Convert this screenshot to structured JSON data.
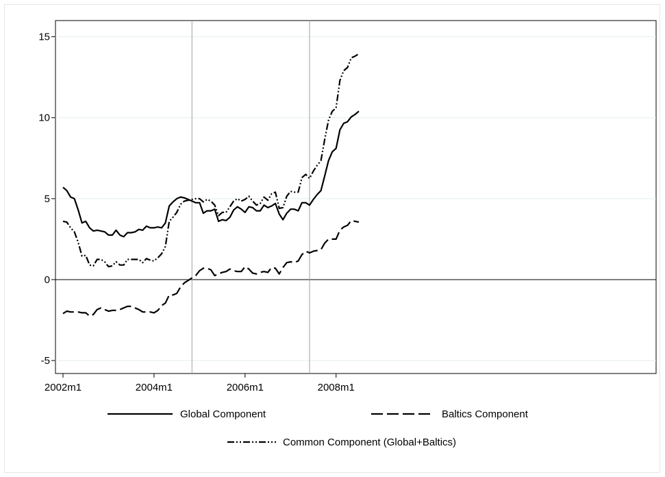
{
  "chart_data": {
    "type": "line",
    "title": "",
    "xlabel": "",
    "ylabel": "",
    "x_start": "2002m1",
    "x_end": "2008m7",
    "xlim": [
      "2002m1",
      "2008m7"
    ],
    "x_ticks": [
      "2002m1",
      "2004m1",
      "2006m1",
      "2008m1"
    ],
    "ylim": [
      -5.8,
      16.0
    ],
    "y_ticks": [
      -5,
      0,
      5,
      10,
      15
    ],
    "y_tick_labels": [
      "-5",
      "0",
      "5",
      "10",
      "15"
    ],
    "grid": "horizontal",
    "zero_line": true,
    "vertical_lines": [
      "2004m11",
      "2007m6"
    ],
    "legend_position": "bottom",
    "series": [
      {
        "name": "Global Component",
        "style": "solid",
        "color": "#000000",
        "values": [
          5.7,
          5.5,
          5.1,
          5.0,
          4.3,
          3.5,
          3.6,
          3.2,
          3.0,
          3.05,
          3.0,
          2.95,
          2.75,
          2.75,
          3.05,
          2.75,
          2.65,
          2.9,
          2.9,
          2.95,
          3.1,
          3.05,
          3.3,
          3.2,
          3.2,
          3.25,
          3.2,
          3.5,
          4.55,
          4.8,
          5.0,
          5.1,
          5.05,
          4.95,
          4.85,
          4.75,
          4.75,
          4.1,
          4.25,
          4.25,
          4.35,
          3.6,
          3.7,
          3.65,
          3.85,
          4.3,
          4.5,
          4.35,
          4.15,
          4.5,
          4.45,
          4.25,
          4.25,
          4.6,
          4.45,
          4.55,
          4.7,
          4.05,
          3.7,
          4.1,
          4.35,
          4.35,
          4.25,
          4.75,
          4.75,
          4.6,
          4.95,
          5.25,
          5.5,
          6.4,
          7.35,
          7.9,
          8.1,
          9.25,
          9.65,
          9.75,
          10.05,
          10.2,
          10.4
        ]
      },
      {
        "name": "Baltics Component",
        "style": "dashed",
        "color": "#000000",
        "values": [
          -2.1,
          -1.95,
          -2.0,
          -2.0,
          -2.0,
          -2.05,
          -2.05,
          -2.25,
          -2.15,
          -1.85,
          -1.75,
          -1.85,
          -1.95,
          -1.9,
          -1.9,
          -1.85,
          -1.75,
          -1.65,
          -1.65,
          -1.75,
          -1.85,
          -2.0,
          -2.0,
          -2.0,
          -2.05,
          -1.9,
          -1.6,
          -1.45,
          -0.95,
          -0.95,
          -0.85,
          -0.45,
          -0.2,
          -0.05,
          0.1,
          0.25,
          0.55,
          0.7,
          0.7,
          0.6,
          0.25,
          0.35,
          0.45,
          0.5,
          0.65,
          0.55,
          0.5,
          0.5,
          0.8,
          0.65,
          0.4,
          0.35,
          0.45,
          0.5,
          0.45,
          0.75,
          0.7,
          0.35,
          0.75,
          1.05,
          1.1,
          1.05,
          1.15,
          1.55,
          1.75,
          1.65,
          1.75,
          1.8,
          1.85,
          2.25,
          2.5,
          2.5,
          2.5,
          3.05,
          3.25,
          3.35,
          3.65,
          3.6,
          3.55
        ]
      },
      {
        "name": "Common Component (Global+Baltics)",
        "style": "dash-dot-dot",
        "color": "#000000",
        "values": [
          3.6,
          3.55,
          3.2,
          2.95,
          2.3,
          1.45,
          1.5,
          0.9,
          0.85,
          1.25,
          1.25,
          1.1,
          0.8,
          0.85,
          1.1,
          0.9,
          0.9,
          1.25,
          1.25,
          1.25,
          1.25,
          1.05,
          1.3,
          1.2,
          1.15,
          1.35,
          1.6,
          2.05,
          3.6,
          3.85,
          4.15,
          4.65,
          4.85,
          4.9,
          4.95,
          5.0,
          5.0,
          4.8,
          4.95,
          4.85,
          4.6,
          3.95,
          4.15,
          4.15,
          4.5,
          4.85,
          5.0,
          4.85,
          4.95,
          5.15,
          4.85,
          4.6,
          4.7,
          5.1,
          4.9,
          5.3,
          5.4,
          4.4,
          4.45,
          5.15,
          5.45,
          5.4,
          5.4,
          6.3,
          6.5,
          6.25,
          6.7,
          7.05,
          7.35,
          8.65,
          9.85,
          10.4,
          10.6,
          12.3,
          12.9,
          13.1,
          13.7,
          13.8,
          13.95
        ]
      }
    ]
  }
}
